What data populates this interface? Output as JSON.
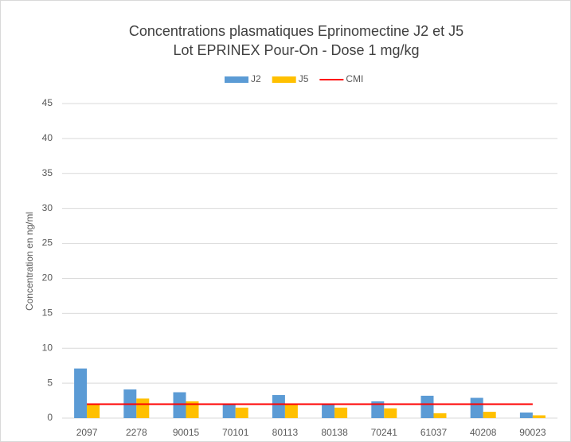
{
  "chart_data": {
    "type": "bar",
    "title": "Concentrations plasmatiques Eprinomectine J2 et J5",
    "subtitle": "Lot EPRINEX Pour-On - Dose 1 mg/kg",
    "y_label": "Concentration en ng/ml",
    "categories": [
      "2097",
      "2278",
      "90015",
      "70101",
      "80113",
      "80138",
      "70241",
      "61037",
      "40208",
      "90023"
    ],
    "series": [
      {
        "name": "J2",
        "color": "#5b9bd5",
        "values": [
          7.1,
          4.1,
          3.7,
          2.0,
          3.3,
          2.0,
          2.4,
          3.2,
          2.9,
          0.8
        ]
      },
      {
        "name": "J5",
        "color": "#ffc000",
        "values": [
          2.1,
          2.8,
          2.4,
          1.5,
          2.1,
          1.5,
          1.4,
          0.7,
          0.9,
          0.4
        ]
      },
      {
        "name": "CMI",
        "color": "#ff0000",
        "type": "line",
        "values": [
          2,
          2,
          2,
          2,
          2,
          2,
          2,
          2,
          2,
          2
        ]
      }
    ],
    "ylim": [
      0,
      45
    ],
    "yticks": [
      0,
      5,
      10,
      15,
      20,
      25,
      30,
      35,
      40,
      45
    ],
    "grid": true,
    "legend": "top"
  }
}
